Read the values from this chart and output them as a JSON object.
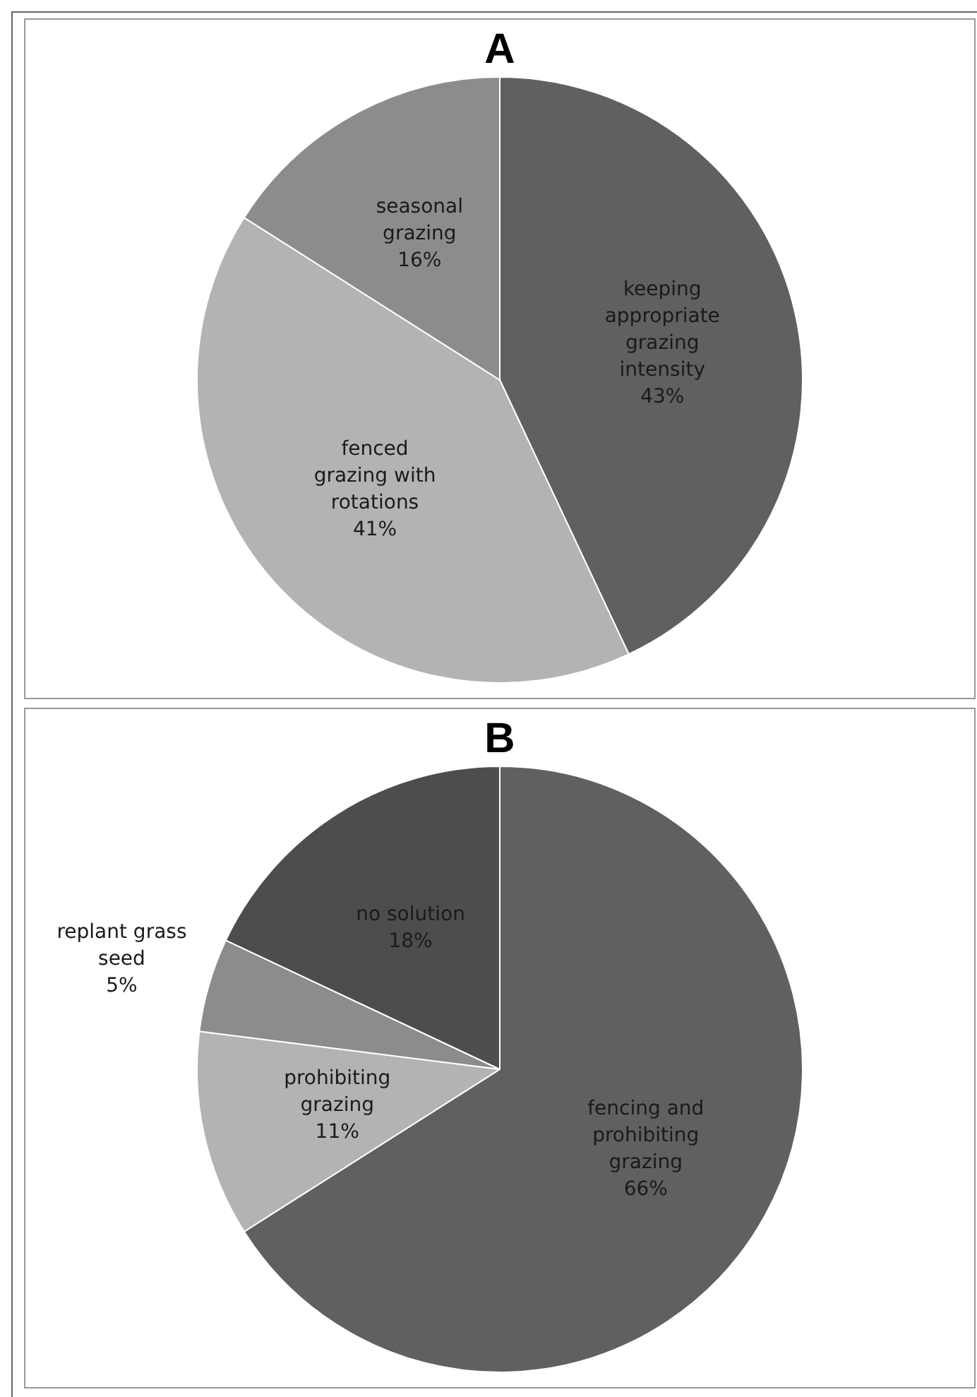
{
  "chart_data": [
    {
      "type": "pie",
      "title": "A",
      "categories": [
        "keeping appropriate grazing intensity",
        "fenced grazing with rotations",
        "seasonal grazing"
      ],
      "values": [
        43,
        41,
        16
      ],
      "value_labels": [
        "43%",
        "41%",
        "16%"
      ],
      "colors": [
        "#606060",
        "#b3b3b3",
        "#8c8c8c"
      ]
    },
    {
      "type": "pie",
      "title": "B",
      "categories": [
        "fencing and prohibiting grazing",
        "prohibiting grazing",
        "replant grass seed",
        "no solution"
      ],
      "values": [
        66,
        11,
        5,
        18
      ],
      "value_labels": [
        "66%",
        "11%",
        "5%",
        "18%"
      ],
      "colors": [
        "#606060",
        "#b3b3b3",
        "#8c8c8c",
        "#4d4d4d"
      ]
    }
  ]
}
